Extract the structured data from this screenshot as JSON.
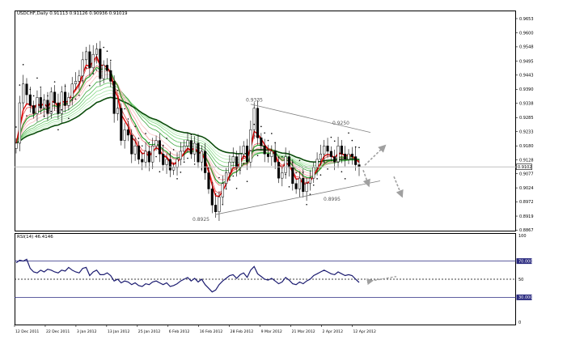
{
  "chart_data": [
    {
      "type": "candlestick",
      "title": "USDCHF,Daily  0.91113 0.91126 0.90936 0.91019",
      "ylim": [
        0.8865,
        0.968
      ],
      "y_ticks": [
        0.9653,
        0.96,
        0.9548,
        0.9495,
        0.9443,
        0.939,
        0.9338,
        0.9285,
        0.9233,
        0.918,
        0.9128,
        0.9077,
        0.9024,
        0.8972,
        0.8919,
        0.8867
      ],
      "y_tick_labels": [
        "0.9653",
        "0.9600",
        "0.9548",
        "0.9495",
        "0.9443",
        "0.9390",
        "0.9338",
        "0.9285",
        "0.9233",
        "0.9180",
        "0.9128",
        "0.9077",
        "0.9024",
        "0.8972",
        "0.8919",
        "0.8867"
      ],
      "current_price": 0.9102,
      "current_price_label": "0.9102",
      "x_tick_labels": [
        "12 Dec 2011",
        "22 Dec 2011",
        "3 Jan 2012",
        "13 Jan 2012",
        "25 Jan 2012",
        "6 Feb 2012",
        "16 Feb 2012",
        "28 Feb 2012",
        "9 Mar 2012",
        "21 Mar 2012",
        "2 Apr 2012",
        "12 Apr 2012"
      ],
      "annotations": [
        {
          "text": "0.9335",
          "price": 0.9335
        },
        {
          "text": "0.9250",
          "price": 0.925
        },
        {
          "text": "0.8995",
          "price": 0.8995
        },
        {
          "text": "0.8925",
          "price": 0.8925
        }
      ],
      "close": [
        0.919,
        0.934,
        0.941,
        0.937,
        0.933,
        0.93,
        0.936,
        0.932,
        0.935,
        0.93,
        0.938,
        0.934,
        0.93,
        0.938,
        0.933,
        0.936,
        0.941,
        0.942,
        0.944,
        0.95,
        0.953,
        0.947,
        0.952,
        0.954,
        0.943,
        0.948,
        0.946,
        0.942,
        0.93,
        0.932,
        0.92,
        0.924,
        0.922,
        0.915,
        0.918,
        0.913,
        0.912,
        0.916,
        0.912,
        0.918,
        0.92,
        0.915,
        0.911,
        0.913,
        0.909,
        0.91,
        0.913,
        0.916,
        0.918,
        0.92,
        0.915,
        0.919,
        0.912,
        0.916,
        0.908,
        0.902,
        0.896,
        0.8935,
        0.899,
        0.904,
        0.908,
        0.912,
        0.914,
        0.91,
        0.915,
        0.918,
        0.912,
        0.924,
        0.932,
        0.921,
        0.918,
        0.915,
        0.914,
        0.916,
        0.912,
        0.906,
        0.908,
        0.914,
        0.91,
        0.904,
        0.902,
        0.906,
        0.901,
        0.904,
        0.906,
        0.91,
        0.913,
        0.915,
        0.918,
        0.916,
        0.914,
        0.912,
        0.918,
        0.915,
        0.913,
        0.915,
        0.914,
        0.911,
        0.9102
      ]
    },
    {
      "type": "line",
      "title": "RSI(14) 46.4146",
      "ylim": [
        0,
        100
      ],
      "levels": [
        70,
        50,
        30
      ],
      "y_tick_labels": [
        "100",
        "70.000",
        "50",
        "30.000",
        "0"
      ],
      "series": [
        {
          "name": "RSI(14)",
          "values": [
            68,
            71,
            70,
            72,
            62,
            58,
            57,
            60,
            58,
            61,
            60,
            58,
            57,
            60,
            59,
            63,
            60,
            58,
            57,
            62,
            63,
            54,
            58,
            60,
            55,
            55,
            57,
            54,
            48,
            50,
            46,
            48,
            47,
            44,
            46,
            43,
            42,
            45,
            44,
            47,
            48,
            46,
            44,
            46,
            42,
            43,
            45,
            48,
            50,
            52,
            48,
            51,
            47,
            50,
            44,
            40,
            36,
            38,
            44,
            48,
            51,
            54,
            55,
            51,
            55,
            57,
            52,
            60,
            64,
            56,
            53,
            50,
            49,
            51,
            48,
            45,
            47,
            52,
            49,
            45,
            44,
            47,
            45,
            48,
            50,
            54,
            56,
            58,
            60,
            58,
            56,
            55,
            58,
            56,
            54,
            55,
            54,
            50,
            46.41
          ]
        }
      ]
    }
  ]
}
